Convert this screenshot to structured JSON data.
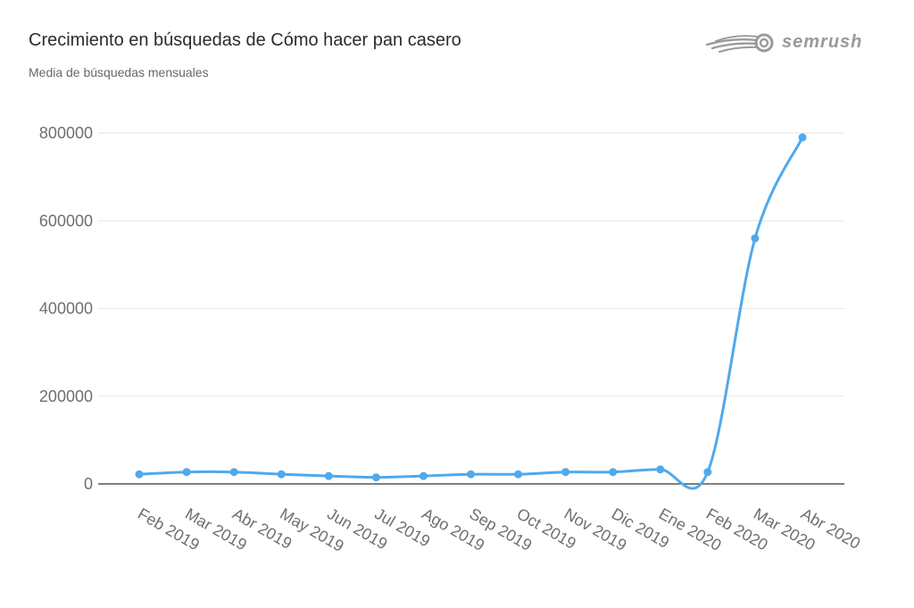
{
  "header": {
    "title": "Crecimiento en búsquedas de Cómo hacer pan casero",
    "subtitle": "Media de búsquedas mensuales"
  },
  "brand": {
    "name": "semrush",
    "icon": "semrush-logo-icon",
    "color": "#9a9a9a"
  },
  "colors": {
    "series": "#4fa9ec",
    "grid": "#e6e6e6",
    "axis": "#555555"
  },
  "chart_data": {
    "type": "line",
    "title": "Crecimiento en búsquedas de Cómo hacer pan casero",
    "subtitle": "Media de búsquedas mensuales",
    "xlabel": "",
    "ylabel": "",
    "categories": [
      "Feb 2019",
      "Mar 2019",
      "Abr 2019",
      "May 2019",
      "Jun 2019",
      "Jul 2019",
      "Ago 2019",
      "Sep 2019",
      "Oct 2019",
      "Nov 2019",
      "Dic 2019",
      "Ene 2020",
      "Feb 2020",
      "Mar 2020",
      "Abr 2020"
    ],
    "series": [
      {
        "values": [
          22000,
          27000,
          27000,
          22000,
          18000,
          15000,
          18000,
          22000,
          22000,
          27000,
          27000,
          33000,
          27000,
          560000,
          790000
        ]
      }
    ],
    "ylim": [
      0,
      800000
    ],
    "yticks": [
      "0",
      "200000",
      "400000",
      "600000",
      "800000"
    ],
    "yticks_values": [
      0,
      200000,
      400000,
      600000,
      800000
    ],
    "grid": true,
    "legend": "none",
    "smooth": true
  }
}
